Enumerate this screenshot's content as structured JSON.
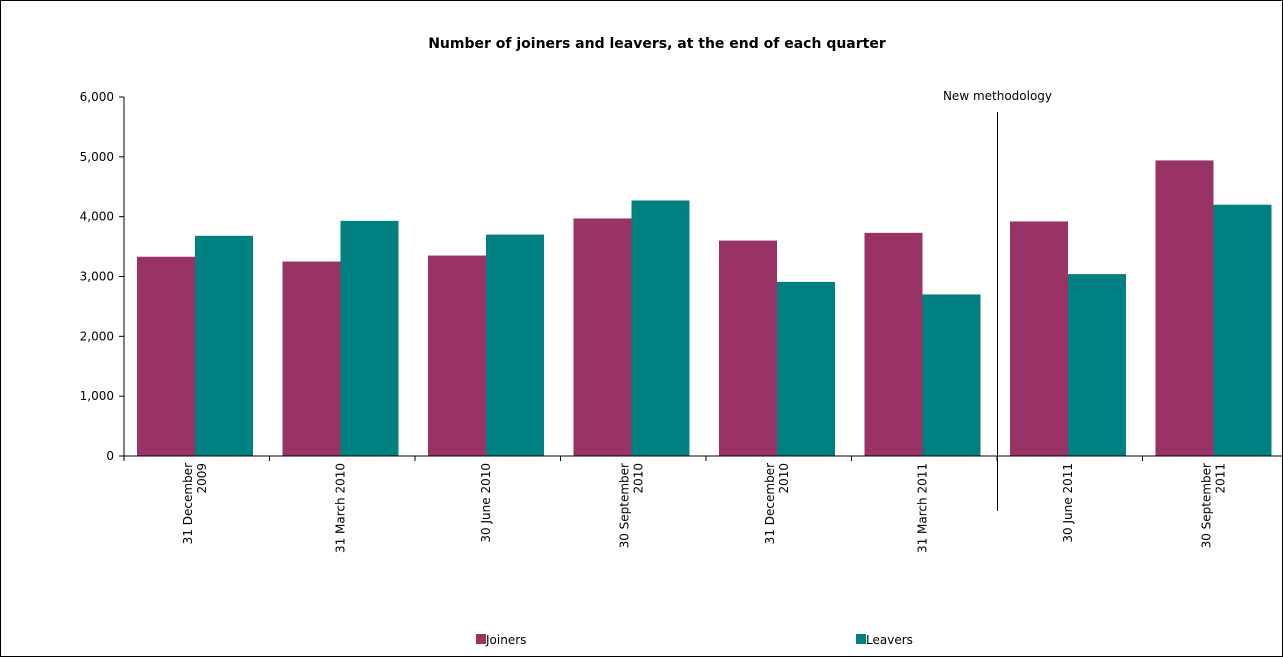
{
  "chart_data": {
    "type": "bar",
    "title": "Number of joiners and leavers, at the end of each quarter",
    "categories": [
      [
        "31 December",
        "2009"
      ],
      [
        "31 March 2010"
      ],
      [
        "30 June 2010"
      ],
      [
        "30 September",
        "2010"
      ],
      [
        "31 December",
        "2010"
      ],
      [
        "31 March 2011"
      ],
      [
        "30 June 2011"
      ],
      [
        "30 September",
        "2011"
      ]
    ],
    "series": [
      {
        "name": "Joiners",
        "color": "#993366",
        "values": [
          3330,
          3250,
          3350,
          3970,
          3600,
          3730,
          3920,
          4940
        ]
      },
      {
        "name": "Leavers",
        "color": "#008080",
        "values": [
          3680,
          3930,
          3700,
          4270,
          2910,
          2700,
          3040,
          4200
        ]
      }
    ],
    "yticks": [
      "0",
      "1,000",
      "2,000",
      "3,000",
      "4,000",
      "5,000",
      "6,000"
    ],
    "ylim": [
      0,
      6000
    ],
    "annotation": {
      "text": "New methodology",
      "after_category_index": 5
    },
    "legend_position": "bottom",
    "grid": false
  }
}
